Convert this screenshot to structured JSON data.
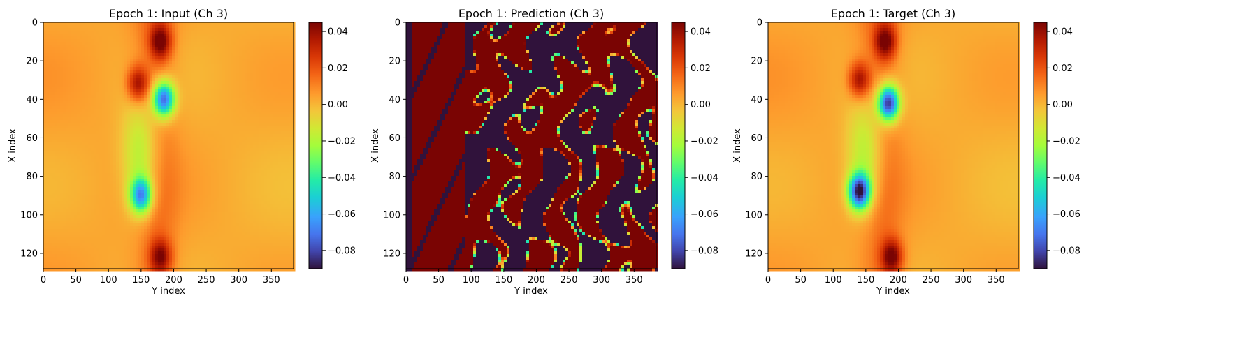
{
  "chart_data": [
    {
      "type": "heatmap",
      "title": "Epoch 1: Input (Ch 3)",
      "xlabel": "Y index",
      "ylabel": "X index",
      "xlim": [
        0,
        384
      ],
      "ylim": [
        128,
        0
      ],
      "xticks": [
        0,
        50,
        100,
        150,
        200,
        250,
        300,
        350
      ],
      "yticks": [
        0,
        20,
        40,
        60,
        80,
        100,
        120
      ],
      "colormap": "turbo",
      "colorbar": {
        "vmin": -0.09,
        "vmax": 0.045,
        "ticks": [
          "0.04",
          "0.02",
          "0.00",
          "−0.02",
          "−0.04",
          "−0.06",
          "−0.08"
        ],
        "tick_values": [
          0.04,
          0.02,
          0.0,
          -0.02,
          -0.04,
          -0.06,
          -0.08
        ]
      },
      "features": [
        {
          "x": 180,
          "y": 10,
          "v": 0.045
        },
        {
          "x": 145,
          "y": 32,
          "v": 0.04
        },
        {
          "x": 185,
          "y": 40,
          "v": -0.075
        },
        {
          "x": 150,
          "y": 90,
          "v": -0.06
        },
        {
          "x": 180,
          "y": 122,
          "v": 0.04
        }
      ]
    },
    {
      "type": "heatmap",
      "title": "Epoch 1: Prediction (Ch 3)",
      "xlabel": "Y index",
      "ylabel": "X index",
      "xlim": [
        0,
        384
      ],
      "ylim": [
        128,
        0
      ],
      "xticks": [
        0,
        50,
        100,
        150,
        200,
        250,
        300,
        350
      ],
      "yticks": [
        0,
        20,
        40,
        60,
        80,
        100,
        120
      ],
      "colormap": "turbo",
      "colorbar": {
        "vmin": -0.09,
        "vmax": 0.045,
        "ticks": [
          "0.04",
          "0.02",
          "0.00",
          "−0.02",
          "−0.04",
          "−0.06",
          "−0.08"
        ],
        "tick_values": [
          0.04,
          0.02,
          0.0,
          -0.02,
          -0.04,
          -0.06,
          -0.08
        ]
      }
    },
    {
      "type": "heatmap",
      "title": "Epoch 1: Target (Ch 3)",
      "xlabel": "Y index",
      "ylabel": "X index",
      "xlim": [
        0,
        384
      ],
      "ylim": [
        128,
        0
      ],
      "xticks": [
        0,
        50,
        100,
        150,
        200,
        250,
        300,
        350
      ],
      "yticks": [
        0,
        20,
        40,
        60,
        80,
        100,
        120
      ],
      "colormap": "turbo",
      "colorbar": {
        "vmin": -0.09,
        "vmax": 0.045,
        "ticks": [
          "0.04",
          "0.02",
          "0.00",
          "−0.02",
          "−0.04",
          "−0.06",
          "−0.08"
        ],
        "tick_values": [
          0.04,
          0.02,
          0.0,
          -0.02,
          -0.04,
          -0.06,
          -0.08
        ]
      },
      "features": [
        {
          "x": 180,
          "y": 10,
          "v": 0.045
        },
        {
          "x": 140,
          "y": 30,
          "v": 0.04
        },
        {
          "x": 185,
          "y": 42,
          "v": -0.085
        },
        {
          "x": 140,
          "y": 88,
          "v": -0.085
        },
        {
          "x": 190,
          "y": 122,
          "v": 0.045
        }
      ]
    }
  ]
}
